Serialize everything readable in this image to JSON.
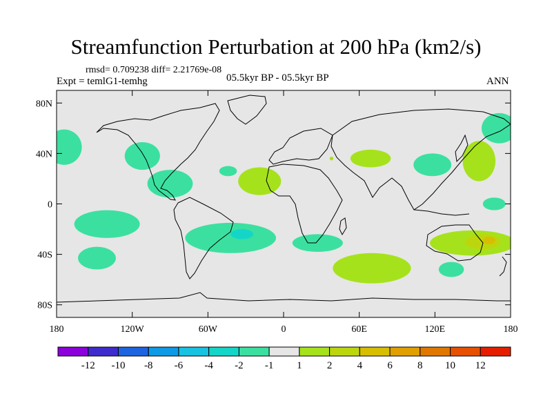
{
  "title": "Streamfunction Perturbation at 200 hPa (km2/s)",
  "stats_line": "rmsd= 0.709238 diff= 2.21769e-08",
  "expt_label": "Expt = temlG1-temhg",
  "period_label": "05.5kyr BP - 05.5kyr BP",
  "season_label": "ANN",
  "chart_data": {
    "type": "contour_map",
    "title": "Streamfunction Perturbation at 200 hPa (km2/s)",
    "xlim": [
      -180,
      180
    ],
    "ylim": [
      -90,
      90
    ],
    "x_ticks": [
      {
        "value": -180,
        "label": "180"
      },
      {
        "value": -120,
        "label": "120W"
      },
      {
        "value": -60,
        "label": "60W"
      },
      {
        "value": 0,
        "label": "0"
      },
      {
        "value": 60,
        "label": "60E"
      },
      {
        "value": 120,
        "label": "120E"
      },
      {
        "value": 180,
        "label": "180"
      }
    ],
    "y_ticks": [
      {
        "value": 80,
        "label": "80N"
      },
      {
        "value": 40,
        "label": "40N"
      },
      {
        "value": 0,
        "label": "0"
      },
      {
        "value": -40,
        "label": "40S"
      },
      {
        "value": -80,
        "label": "80S"
      }
    ],
    "colorbar": {
      "colors": [
        "#8c00dc",
        "#3f2ccc",
        "#1e64e0",
        "#0f9ae6",
        "#18c2e0",
        "#14d6c8",
        "#3be0a0",
        "#e6e6e6",
        "#a6e21c",
        "#bcd60e",
        "#d8be00",
        "#e0a000",
        "#e07800",
        "#e65000",
        "#e61e00"
      ],
      "labels": [
        "-12",
        "-10",
        "-8",
        "-6",
        "-4",
        "-2",
        "-1",
        "1",
        "2",
        "4",
        "6",
        "8",
        "10",
        "12"
      ]
    },
    "regions": [
      {
        "level": "-2 to -1",
        "color": "#3be0a0",
        "center_lon": -174,
        "center_lat": 45,
        "lon_radius": 14,
        "lat_radius": 14
      },
      {
        "level": "-2 to -1",
        "color": "#3be0a0",
        "center_lon": -112,
        "center_lat": 38,
        "lon_radius": 14,
        "lat_radius": 11
      },
      {
        "level": "-2 to -1",
        "color": "#3be0a0",
        "center_lon": -90,
        "center_lat": 16,
        "lon_radius": 18,
        "lat_radius": 11
      },
      {
        "level": "-2 to -1",
        "color": "#3be0a0",
        "center_lon": -44,
        "center_lat": 26,
        "lon_radius": 7,
        "lat_radius": 4
      },
      {
        "level": "-2 to -1",
        "color": "#3be0a0",
        "center_lon": -140,
        "center_lat": -16,
        "lon_radius": 26,
        "lat_radius": 11
      },
      {
        "level": "-2 to -1",
        "color": "#3be0a0",
        "center_lon": -148,
        "center_lat": -43,
        "lon_radius": 15,
        "lat_radius": 9
      },
      {
        "level": "-2 to -1",
        "color": "#3be0a0",
        "center_lon": -42,
        "center_lat": -27,
        "lon_radius": 36,
        "lat_radius": 12
      },
      {
        "level": "-4 to -2",
        "color": "#14d6c8",
        "center_lon": -33,
        "center_lat": -24,
        "lon_radius": 9,
        "lat_radius": 4
      },
      {
        "level": "-2 to -1",
        "color": "#3be0a0",
        "center_lon": 27,
        "center_lat": -31,
        "lon_radius": 20,
        "lat_radius": 7
      },
      {
        "level": "-2 to -1",
        "color": "#3be0a0",
        "center_lon": 118,
        "center_lat": 31,
        "lon_radius": 15,
        "lat_radius": 9
      },
      {
        "level": "-2 to -1",
        "color": "#3be0a0",
        "center_lon": 171,
        "center_lat": 60,
        "lon_radius": 14,
        "lat_radius": 12
      },
      {
        "level": "-2 to -1",
        "color": "#3be0a0",
        "center_lon": 167,
        "center_lat": 0,
        "lon_radius": 9,
        "lat_radius": 5
      },
      {
        "level": "-2 to -1",
        "color": "#3be0a0",
        "center_lon": 133,
        "center_lat": -52,
        "lon_radius": 10,
        "lat_radius": 6
      },
      {
        "level": "1 to 2",
        "color": "#a6e21c",
        "center_lon": -19,
        "center_lat": 18,
        "lon_radius": 17,
        "lat_radius": 11
      },
      {
        "level": "1 to 2",
        "color": "#a6e21c",
        "center_lon": 69,
        "center_lat": 36,
        "lon_radius": 16,
        "lat_radius": 7
      },
      {
        "level": "1 to 2",
        "color": "#a6e21c",
        "center_lon": 38,
        "center_lat": 36,
        "lon_radius": 1.5,
        "lat_radius": 1.5
      },
      {
        "level": "1 to 2",
        "color": "#a6e21c",
        "center_lon": 155,
        "center_lat": 34,
        "lon_radius": 13,
        "lat_radius": 16
      },
      {
        "level": "1 to 2",
        "color": "#a6e21c",
        "center_lon": 70,
        "center_lat": -51,
        "lon_radius": 31,
        "lat_radius": 12
      },
      {
        "level": "1 to 2",
        "color": "#a6e21c",
        "center_lon": 150,
        "center_lat": -31,
        "lon_radius": 34,
        "lat_radius": 10
      },
      {
        "level": "2 to 4",
        "color": "#bcd60e",
        "center_lon": 158,
        "center_lat": -30,
        "lon_radius": 14,
        "lat_radius": 6
      },
      {
        "level": "4 to 6",
        "color": "#d8be00",
        "center_lon": 163,
        "center_lat": -29,
        "lon_radius": 5,
        "lat_radius": 3
      }
    ]
  }
}
